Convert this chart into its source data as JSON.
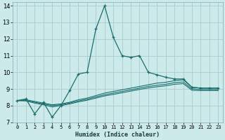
{
  "xlabel": "Humidex (Indice chaleur)",
  "bg_color": "#cceaea",
  "grid_color": "#aacccc",
  "line_color": "#1a6e6e",
  "xlim": [
    -0.5,
    23.5
  ],
  "ylim": [
    7,
    14.2
  ],
  "xticks": [
    0,
    1,
    2,
    3,
    4,
    5,
    6,
    7,
    8,
    9,
    10,
    11,
    12,
    13,
    14,
    15,
    16,
    17,
    18,
    19,
    20,
    21,
    22,
    23
  ],
  "yticks": [
    7,
    8,
    9,
    10,
    11,
    12,
    13,
    14
  ],
  "series": [
    {
      "x": [
        0,
        1,
        2,
        3,
        4,
        5,
        6,
        7,
        8,
        9,
        10,
        11,
        12,
        13,
        14,
        15,
        16,
        17,
        18,
        19,
        20,
        21,
        22,
        23
      ],
      "y": [
        8.3,
        8.4,
        7.5,
        8.2,
        7.3,
        8.0,
        8.9,
        9.9,
        10.0,
        12.6,
        14.0,
        12.1,
        11.0,
        10.9,
        11.0,
        10.0,
        9.85,
        9.7,
        9.6,
        9.6,
        9.1,
        9.05,
        9.05,
        9.05
      ],
      "marker": true
    },
    {
      "x": [
        0,
        1,
        2,
        3,
        4,
        5,
        6,
        7,
        8,
        9,
        10,
        11,
        12,
        13,
        14,
        15,
        16,
        17,
        18,
        19,
        20,
        21,
        22,
        23
      ],
      "y": [
        8.3,
        8.35,
        8.25,
        8.15,
        8.05,
        8.1,
        8.2,
        8.35,
        8.45,
        8.6,
        8.75,
        8.85,
        8.95,
        9.05,
        9.15,
        9.25,
        9.35,
        9.4,
        9.5,
        9.55,
        9.1,
        9.05,
        9.05,
        9.05
      ],
      "marker": false
    },
    {
      "x": [
        0,
        1,
        2,
        3,
        4,
        5,
        6,
        7,
        8,
        9,
        10,
        11,
        12,
        13,
        14,
        15,
        16,
        17,
        18,
        19,
        20,
        21,
        22,
        23
      ],
      "y": [
        8.3,
        8.3,
        8.2,
        8.1,
        8.0,
        8.05,
        8.15,
        8.28,
        8.38,
        8.52,
        8.65,
        8.75,
        8.85,
        8.95,
        9.05,
        9.15,
        9.22,
        9.28,
        9.38,
        9.42,
        9.0,
        8.97,
        8.97,
        8.97
      ],
      "marker": false
    },
    {
      "x": [
        0,
        1,
        2,
        3,
        4,
        5,
        6,
        7,
        8,
        9,
        10,
        11,
        12,
        13,
        14,
        15,
        16,
        17,
        18,
        19,
        20,
        21,
        22,
        23
      ],
      "y": [
        8.3,
        8.28,
        8.15,
        8.05,
        7.92,
        8.0,
        8.1,
        8.22,
        8.32,
        8.45,
        8.58,
        8.67,
        8.77,
        8.87,
        8.97,
        9.06,
        9.13,
        9.19,
        9.28,
        9.32,
        8.92,
        8.9,
        8.9,
        8.9
      ],
      "marker": false
    }
  ]
}
